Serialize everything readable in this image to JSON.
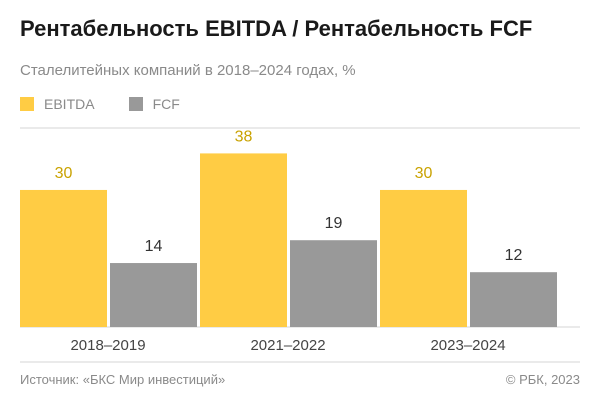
{
  "colors": {
    "ebitda": "#FFCC44",
    "fcf": "#999999",
    "ebitda_label": "#C9A200",
    "fcf_label": "#333333",
    "grid": "#d6d6d6",
    "axis_text": "#444444"
  },
  "footer": {
    "source": "Источник: «БКС Мир инвестиций»",
    "copyright": "© РБК, 2023"
  },
  "chart_data": {
    "type": "bar",
    "title": "Рентабельность EBITDA / Рентабельность FCF",
    "subtitle": "Сталелитейных компаний в 2018–2024 годах, %",
    "xlabel": "",
    "ylabel": "",
    "ylim": [
      0,
      44
    ],
    "grid": false,
    "legend_position": "top-left",
    "categories": [
      "2018–2019",
      "2021–2022",
      "2023–2024"
    ],
    "series": [
      {
        "name": "EBITDA",
        "values": [
          30,
          38,
          30
        ]
      },
      {
        "name": "FCF",
        "values": [
          14,
          19,
          12
        ]
      }
    ]
  }
}
